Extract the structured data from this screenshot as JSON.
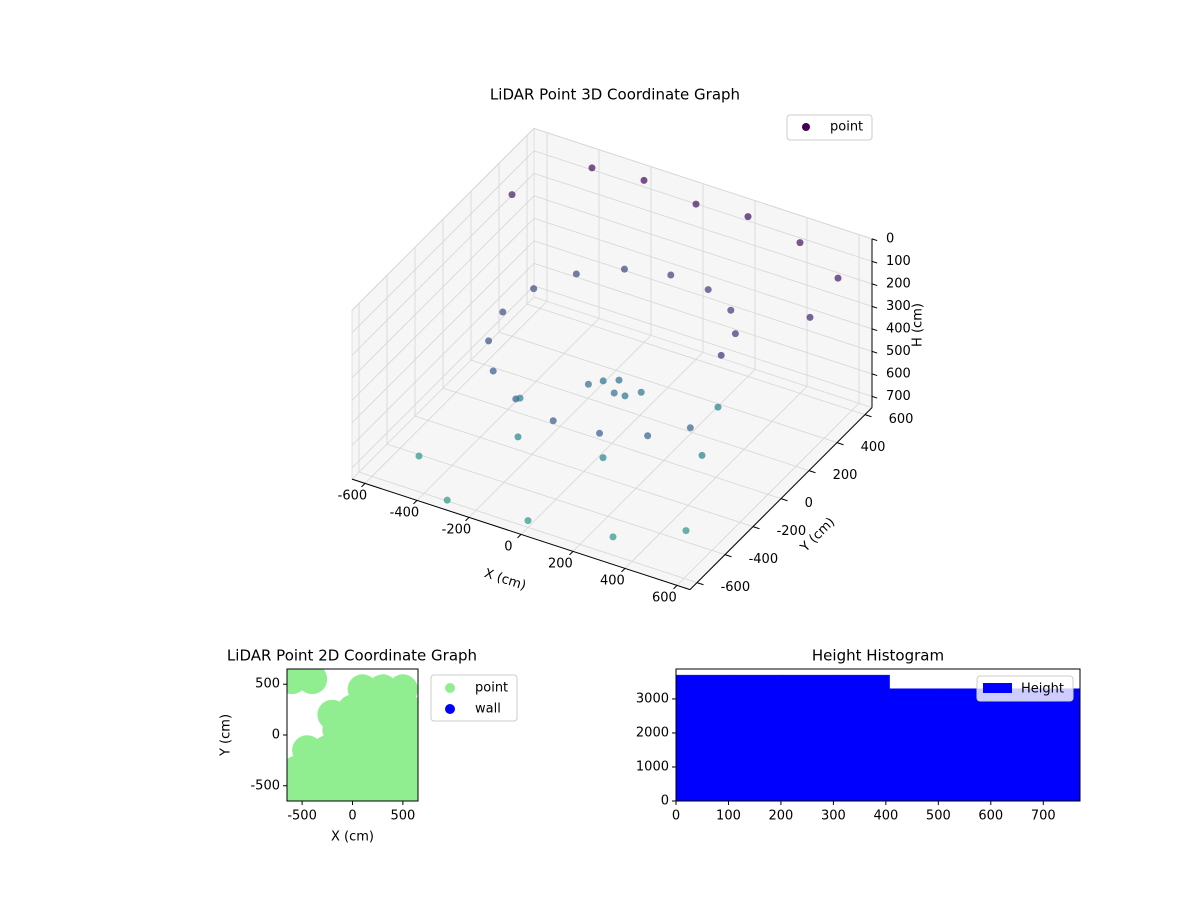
{
  "chart_data": [
    {
      "type": "scatter3d",
      "title": "LiDAR Point 3D Coordinate Graph",
      "xlabel": "X (cm)",
      "ylabel": "Y (cm)",
      "zlabel": "H (cm)",
      "xlim": [
        -650,
        650
      ],
      "ylim": [
        -650,
        650
      ],
      "zlim": [
        0,
        750
      ],
      "z_inverted": true,
      "xticks": [
        -600,
        -400,
        -200,
        0,
        200,
        400,
        600
      ],
      "yticks": [
        -600,
        -400,
        -200,
        0,
        200,
        400,
        600
      ],
      "zticks": [
        0,
        100,
        200,
        300,
        400,
        500,
        600,
        700
      ],
      "colormap": "viridis",
      "legend": "upper right",
      "series": [
        {
          "name": "point",
          "color": "#440154",
          "x": [
            420,
            388,
            297,
            161,
            0,
            -161,
            -297,
            -388,
            -420,
            -388,
            -297,
            -161,
            0,
            161,
            297,
            388,
            0,
            50,
            -50,
            30,
            80,
            -80,
            -400,
            -200,
            0,
            200,
            400,
            600,
            -600,
            600,
            0,
            300,
            -300,
            500,
            -500,
            -300,
            -200,
            100,
            300,
            400
          ],
          "y": [
            0,
            161,
            297,
            388,
            420,
            388,
            297,
            161,
            0,
            -161,
            -297,
            -388,
            -420,
            -388,
            -297,
            -161,
            50,
            0,
            30,
            -40,
            60,
            -20,
            600,
            600,
            600,
            600,
            600,
            500,
            400,
            300,
            -600,
            -550,
            -620,
            -400,
            -450,
            -100,
            -300,
            -250,
            200,
            -100
          ],
          "z": [
            200,
            216,
            231,
            247,
            263,
            278,
            294,
            309,
            325,
            341,
            356,
            372,
            388,
            403,
            419,
            434,
            500,
            520,
            510,
            490,
            530,
            505,
            50,
            30,
            60,
            40,
            80,
            100,
            120,
            150,
            720,
            710,
            730,
            700,
            715,
            600,
            610,
            620,
            600,
            590
          ]
        }
      ]
    },
    {
      "type": "scatter",
      "title": "LiDAR Point 2D Coordinate Graph",
      "xlabel": "X (cm)",
      "ylabel": "Y (cm)",
      "xlim": [
        -650,
        650
      ],
      "ylim": [
        -650,
        650
      ],
      "xticks": [
        -500,
        0,
        500
      ],
      "yticks": [
        -500,
        0,
        500
      ],
      "legend": "outside right",
      "series": [
        {
          "name": "point",
          "color": "#90ee90",
          "x": [
            -550,
            -350,
            -150,
            50,
            250,
            450,
            550,
            -550,
            -350,
            -150,
            50,
            250,
            450,
            550,
            -450,
            -250,
            -50,
            150,
            350,
            550,
            -150,
            50,
            250,
            450,
            550,
            0,
            200,
            400,
            550,
            300,
            500,
            -600,
            -400,
            -200,
            100
          ],
          "y": [
            -550,
            -550,
            -550,
            -550,
            -550,
            -550,
            -550,
            -350,
            -350,
            -350,
            -350,
            -350,
            -350,
            -350,
            -150,
            -150,
            -150,
            -150,
            -150,
            -150,
            50,
            50,
            50,
            50,
            50,
            250,
            250,
            250,
            250,
            450,
            450,
            550,
            550,
            200,
            450
          ]
        },
        {
          "name": "wall",
          "color": "#0000ff",
          "x": [],
          "y": []
        }
      ]
    },
    {
      "type": "histogram",
      "title": "Height Histogram",
      "xlim": [
        0,
        770
      ],
      "ylim": [
        0,
        3880
      ],
      "xticks": [
        0,
        100,
        200,
        300,
        400,
        500,
        600,
        700
      ],
      "yticks": [
        0,
        1000,
        2000,
        3000
      ],
      "legend": "upper right",
      "series": [
        {
          "name": "Height",
          "color": "#0000ff",
          "bins": [
            0,
            101.75,
            203.5,
            305.25,
            407,
            498,
            589,
            680,
            770
          ],
          "values": [
            3700,
            3700,
            3700,
            3700,
            3300,
            3300,
            3300,
            3300
          ]
        }
      ]
    }
  ]
}
